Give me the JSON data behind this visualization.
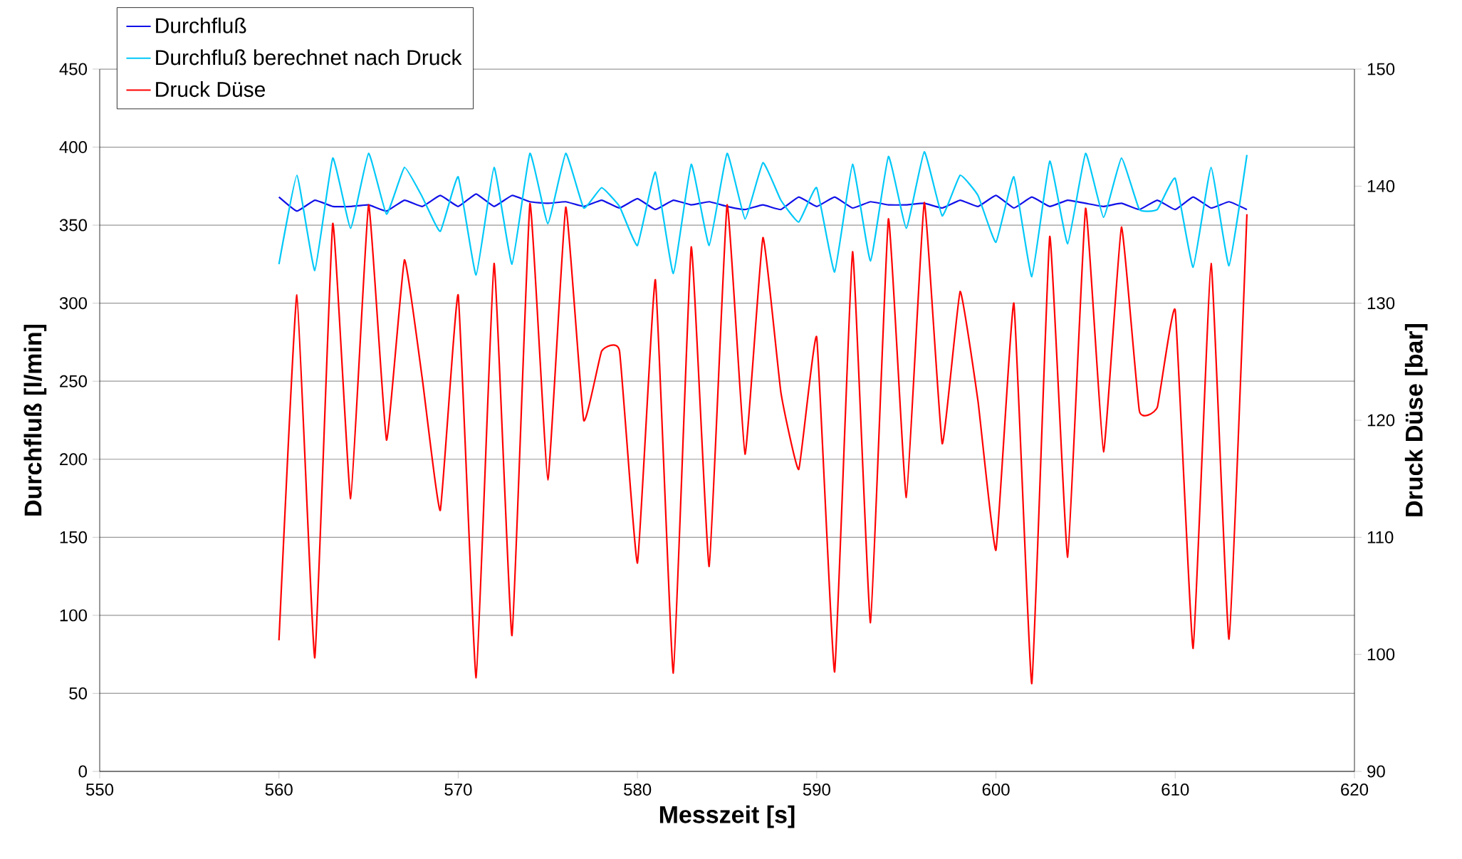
{
  "chart_data": {
    "type": "line",
    "xlabel": "Messzeit [s]",
    "ylabel": "Durchfluß [l/min]",
    "y2label": "Druck Düse [bar]",
    "xlim": [
      550,
      620
    ],
    "xticks": [
      550,
      560,
      570,
      580,
      590,
      600,
      610,
      620
    ],
    "ylim": [
      0,
      450
    ],
    "yticks": [
      0,
      50,
      100,
      150,
      200,
      250,
      300,
      350,
      400,
      450
    ],
    "y2lim": [
      90,
      150
    ],
    "y2ticks": [
      90,
      100,
      110,
      120,
      130,
      140,
      150
    ],
    "grid": "y",
    "legend": "top left",
    "marker": "none",
    "line_style": "solid",
    "x": [
      560,
      561,
      562,
      563,
      564,
      565,
      566,
      567,
      568,
      569,
      570,
      571,
      572,
      573,
      574,
      575,
      576,
      577,
      578,
      579,
      580,
      581,
      582,
      583,
      584,
      585,
      586,
      587,
      588,
      589,
      590,
      591,
      592,
      593,
      594,
      595,
      596,
      597,
      598,
      599,
      600,
      601,
      602,
      603,
      604,
      605,
      606,
      607,
      608,
      609,
      610,
      611,
      612,
      613,
      614
    ],
    "series": [
      {
        "name": "Durchfluß",
        "color": "#1010e8",
        "values": [
          368,
          359,
          366,
          362,
          362,
          363,
          359,
          366,
          362,
          369,
          362,
          370,
          362,
          369,
          365,
          364,
          365,
          362,
          366,
          361,
          367,
          360,
          366,
          363,
          365,
          362,
          360,
          363,
          360,
          368,
          362,
          368,
          361,
          365,
          363,
          363,
          364,
          361,
          366,
          362,
          369,
          361,
          368,
          362,
          366,
          364,
          362,
          364,
          360,
          366,
          360,
          368,
          361,
          365,
          360
        ]
      },
      {
        "name": "Durchfluß berechnet nach Druck",
        "color": "#00c8f8",
        "values": [
          325,
          382,
          321,
          393,
          348,
          396,
          357,
          387,
          368,
          346,
          381,
          318,
          387,
          325,
          396,
          351,
          396,
          361,
          374,
          362,
          337,
          384,
          319,
          389,
          337,
          396,
          354,
          390,
          366,
          352,
          374,
          320,
          389,
          327,
          394,
          348,
          397,
          356,
          382,
          369,
          339,
          381,
          317,
          391,
          338,
          396,
          355,
          393,
          360,
          360,
          380,
          323,
          387,
          324,
          395
        ]
      },
      {
        "name": "Druck Düse",
        "color": "#ff0000",
        "axis": "y2",
        "values": [
          101.2,
          130.7,
          99.7,
          136.8,
          113.3,
          138.4,
          118.3,
          133.7,
          123.5,
          112.3,
          130.7,
          98.0,
          133.4,
          101.6,
          138.5,
          114.9,
          138.2,
          120.0,
          125.9,
          125.9,
          107.8,
          132.0,
          98.4,
          134.8,
          107.5,
          138.4,
          117.1,
          135.6,
          122.4,
          115.8,
          127.1,
          98.5,
          134.4,
          102.7,
          137.2,
          113.4,
          138.6,
          118.0,
          131.0,
          121.6,
          108.9,
          130.0,
          97.5,
          135.7,
          108.3,
          138.1,
          117.3,
          136.5,
          120.8,
          121.1,
          129.4,
          100.5,
          133.4,
          101.3,
          137.6
        ]
      }
    ]
  }
}
